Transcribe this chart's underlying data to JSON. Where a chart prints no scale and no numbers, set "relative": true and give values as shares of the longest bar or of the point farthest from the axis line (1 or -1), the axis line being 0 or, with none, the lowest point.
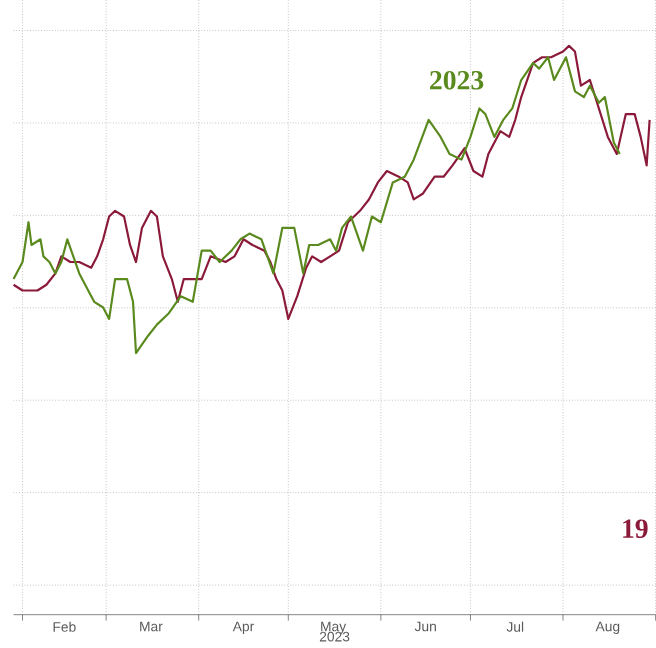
{
  "chart_data": {
    "type": "line",
    "relative": true,
    "xlabel": "2023",
    "grid": true,
    "xlim": [
      "2023-01-29",
      "2023-09-01"
    ],
    "xticks": [
      {
        "value": "2023-02-01",
        "label": null
      },
      {
        "value": "2023-02-15",
        "label": "Feb"
      },
      {
        "value": "2023-03-01",
        "label": null
      },
      {
        "value": "2023-03-16",
        "label": "Mar"
      },
      {
        "value": "2023-04-01",
        "label": null
      },
      {
        "value": "2023-04-16",
        "label": "Apr"
      },
      {
        "value": "2023-05-01",
        "label": null
      },
      {
        "value": "2023-05-16",
        "label": "May"
      },
      {
        "value": "2023-06-01",
        "label": null
      },
      {
        "value": "2023-06-16",
        "label": "Jun"
      },
      {
        "value": "2023-07-01",
        "label": null
      },
      {
        "value": "2023-07-16",
        "label": "Jul"
      },
      {
        "value": "2023-08-01",
        "label": null
      },
      {
        "value": "2023-08-16",
        "label": "Aug"
      },
      {
        "value": "2023-09-01",
        "label": null
      }
    ],
    "series": [
      {
        "name": "19",
        "color": "#8b1a3a",
        "x": [
          "2023-01-29",
          "2023-02-01",
          "2023-02-03",
          "2023-02-06",
          "2023-02-09",
          "2023-02-12",
          "2023-02-14",
          "2023-02-17",
          "2023-02-20",
          "2023-02-24",
          "2023-02-26",
          "2023-02-28",
          "2023-03-02",
          "2023-03-04",
          "2023-03-07",
          "2023-03-09",
          "2023-03-11",
          "2023-03-13",
          "2023-03-16",
          "2023-03-18",
          "2023-03-20",
          "2023-03-23",
          "2023-03-25",
          "2023-03-27",
          "2023-03-30",
          "2023-04-02",
          "2023-04-05",
          "2023-04-10",
          "2023-04-13",
          "2023-04-16",
          "2023-04-19",
          "2023-04-23",
          "2023-04-25",
          "2023-04-27",
          "2023-04-29",
          "2023-05-01",
          "2023-05-04",
          "2023-05-07",
          "2023-05-09",
          "2023-05-12",
          "2023-05-15",
          "2023-05-18",
          "2023-05-21",
          "2023-05-25",
          "2023-05-28",
          "2023-05-31",
          "2023-06-03",
          "2023-06-07",
          "2023-06-10",
          "2023-06-12",
          "2023-06-15",
          "2023-06-19",
          "2023-06-22",
          "2023-06-25",
          "2023-06-29",
          "2023-07-02",
          "2023-07-05",
          "2023-07-07",
          "2023-07-11",
          "2023-07-14",
          "2023-07-16",
          "2023-07-18",
          "2023-07-22",
          "2023-07-25",
          "2023-07-28",
          "2023-08-01",
          "2023-08-03",
          "2023-08-05",
          "2023-08-07",
          "2023-08-10",
          "2023-08-13",
          "2023-08-16",
          "2023-08-19",
          "2023-08-22",
          "2023-08-25",
          "2023-08-27",
          "2023-08-29",
          "2023-08-30"
        ],
        "values": [
          0.58,
          0.57,
          0.57,
          0.57,
          0.58,
          0.6,
          0.63,
          0.62,
          0.62,
          0.61,
          0.63,
          0.66,
          0.7,
          0.71,
          0.7,
          0.65,
          0.62,
          0.68,
          0.71,
          0.7,
          0.63,
          0.59,
          0.55,
          0.59,
          0.59,
          0.59,
          0.63,
          0.62,
          0.63,
          0.66,
          0.65,
          0.64,
          0.62,
          0.59,
          0.57,
          0.52,
          0.56,
          0.61,
          0.63,
          0.62,
          0.63,
          0.64,
          0.69,
          0.71,
          0.73,
          0.76,
          0.78,
          0.77,
          0.76,
          0.73,
          0.74,
          0.77,
          0.77,
          0.79,
          0.82,
          0.78,
          0.77,
          0.81,
          0.85,
          0.84,
          0.87,
          0.91,
          0.97,
          0.98,
          0.98,
          0.99,
          1,
          0.99,
          0.93,
          0.94,
          0.89,
          0.84,
          0.81,
          0.88,
          0.88,
          0.84,
          0.79,
          0.87
        ]
      },
      {
        "name": "2023",
        "color": "#5a8a1e",
        "x": [
          "2023-01-29",
          "2023-02-01",
          "2023-02-03",
          "2023-02-04",
          "2023-02-07",
          "2023-02-08",
          "2023-02-10",
          "2023-02-12",
          "2023-02-14",
          "2023-02-16",
          "2023-02-18",
          "2023-02-20",
          "2023-02-23",
          "2023-02-25",
          "2023-02-28",
          "2023-03-02",
          "2023-03-04",
          "2023-03-08",
          "2023-03-10",
          "2023-03-11",
          "2023-03-15",
          "2023-03-18",
          "2023-03-22",
          "2023-03-26",
          "2023-03-30",
          "2023-04-02",
          "2023-04-05",
          "2023-04-08",
          "2023-04-12",
          "2023-04-15",
          "2023-04-18",
          "2023-04-22",
          "2023-04-24",
          "2023-04-26",
          "2023-04-29",
          "2023-05-03",
          "2023-05-06",
          "2023-05-08",
          "2023-05-11",
          "2023-05-15",
          "2023-05-17",
          "2023-05-19",
          "2023-05-22",
          "2023-05-26",
          "2023-05-29",
          "2023-06-01",
          "2023-06-05",
          "2023-06-09",
          "2023-06-12",
          "2023-06-17",
          "2023-06-21",
          "2023-06-24",
          "2023-06-28",
          "2023-07-01",
          "2023-07-04",
          "2023-07-06",
          "2023-07-09",
          "2023-07-12",
          "2023-07-15",
          "2023-07-18",
          "2023-07-22",
          "2023-07-24",
          "2023-07-27",
          "2023-07-29",
          "2023-08-02",
          "2023-08-05",
          "2023-08-08",
          "2023-08-10",
          "2023-08-13",
          "2023-08-15",
          "2023-08-18",
          "2023-08-20"
        ],
        "values": [
          0.59,
          0.62,
          0.69,
          0.65,
          0.66,
          0.63,
          0.62,
          0.6,
          0.62,
          0.66,
          0.63,
          0.6,
          0.57,
          0.55,
          0.54,
          0.52,
          0.59,
          0.59,
          0.55,
          0.46,
          0.49,
          0.51,
          0.53,
          0.56,
          0.55,
          0.64,
          0.64,
          0.62,
          0.64,
          0.66,
          0.67,
          0.66,
          0.63,
          0.6,
          0.68,
          0.68,
          0.6,
          0.65,
          0.65,
          0.66,
          0.64,
          0.68,
          0.7,
          0.64,
          0.7,
          0.69,
          0.76,
          0.77,
          0.8,
          0.87,
          0.84,
          0.81,
          0.8,
          0.84,
          0.89,
          0.88,
          0.84,
          0.87,
          0.89,
          0.94,
          0.97,
          0.96,
          0.98,
          0.94,
          0.98,
          0.92,
          0.91,
          0.93,
          0.9,
          0.91,
          0.83,
          0.81
        ]
      }
    ]
  }
}
